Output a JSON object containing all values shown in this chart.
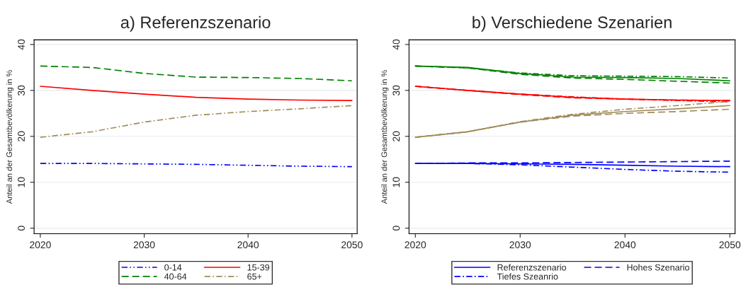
{
  "chart_data": [
    {
      "type": "line",
      "title": "a) Referenzszenario",
      "ylabel": "Anteil an der Gesamtbevölkerung in %",
      "x": [
        2020,
        2025,
        2030,
        2035,
        2040,
        2045,
        2050
      ],
      "xlim": [
        2019.4,
        2050.5
      ],
      "ylim": [
        -1.2,
        41
      ],
      "xticks": [
        2020,
        2030,
        2040,
        2050
      ],
      "yticks": [
        0,
        10,
        20,
        30,
        40
      ],
      "grid": "y",
      "legend": "bottom",
      "series": [
        {
          "name": "0-14",
          "color": "#0000ff",
          "line_style": "dashdotdot",
          "values": [
            14.1,
            14.1,
            14.0,
            13.9,
            13.7,
            13.5,
            13.4
          ]
        },
        {
          "name": "15-39",
          "color": "#ff0000",
          "line_style": "solid",
          "values": [
            30.9,
            30.0,
            29.2,
            28.5,
            28.1,
            27.9,
            27.8
          ]
        },
        {
          "name": "40-64",
          "color": "#008000",
          "line_style": "dashed",
          "values": [
            35.3,
            35.0,
            33.7,
            32.9,
            32.8,
            32.6,
            32.1
          ]
        },
        {
          "name": "65+",
          "color": "#a08c5a",
          "line_style": "dashdot",
          "values": [
            19.8,
            21.0,
            23.1,
            24.6,
            25.4,
            26.0,
            26.7
          ]
        }
      ]
    },
    {
      "type": "line",
      "title": "b) Verschiedene Szenarien",
      "ylabel": "Anteil an der Gesamtbevölkerung in %",
      "x": [
        2020,
        2025,
        2030,
        2035,
        2040,
        2045,
        2050
      ],
      "xlim": [
        2019.4,
        2050.5
      ],
      "ylim": [
        -1.2,
        41
      ],
      "xticks": [
        2020,
        2030,
        2040,
        2050
      ],
      "yticks": [
        0,
        10,
        20,
        30,
        40
      ],
      "grid": "y",
      "legend": "bottom",
      "series": [
        {
          "name": "Referenzszenario",
          "color": "#0000ff",
          "line_style": "solid",
          "values": [
            14.1,
            14.1,
            14.0,
            13.9,
            13.7,
            13.5,
            13.4
          ]
        },
        {
          "color": "#ff0000",
          "line_style": "solid",
          "values": [
            30.9,
            30.0,
            29.2,
            28.5,
            28.1,
            27.9,
            27.8
          ]
        },
        {
          "color": "#008000",
          "line_style": "solid",
          "values": [
            35.3,
            35.0,
            33.7,
            32.9,
            32.8,
            32.6,
            32.1
          ]
        },
        {
          "color": "#a08c5a",
          "line_style": "solid",
          "values": [
            19.8,
            21.0,
            23.1,
            24.6,
            25.4,
            26.0,
            26.7
          ]
        },
        {
          "name": "Hohes Szenario",
          "color": "#0000ff",
          "line_style": "dashed",
          "values": [
            14.1,
            14.2,
            14.2,
            14.3,
            14.4,
            14.5,
            14.6
          ]
        },
        {
          "color": "#ff0000",
          "line_style": "dashed",
          "values": [
            30.9,
            30.0,
            29.1,
            28.4,
            28.1,
            27.9,
            27.8
          ]
        },
        {
          "color": "#008000",
          "line_style": "dashed",
          "values": [
            35.3,
            34.9,
            33.5,
            32.7,
            32.4,
            32.0,
            31.6
          ]
        },
        {
          "color": "#a08c5a",
          "line_style": "dashed",
          "values": [
            19.8,
            21.0,
            23.1,
            24.4,
            25.0,
            25.4,
            25.9
          ]
        },
        {
          "name": "Tiefes Szeanrio",
          "color": "#0000ff",
          "line_style": "dashdot",
          "values": [
            14.1,
            14.1,
            13.8,
            13.3,
            12.8,
            12.4,
            12.2
          ]
        },
        {
          "color": "#ff0000",
          "line_style": "dashdot",
          "values": [
            30.9,
            30.0,
            29.2,
            28.6,
            28.1,
            27.8,
            27.5
          ]
        },
        {
          "color": "#008000",
          "line_style": "dashdot",
          "values": [
            35.3,
            34.9,
            33.8,
            33.2,
            33.1,
            33.0,
            32.7
          ]
        },
        {
          "color": "#a08c5a",
          "line_style": "dashdot",
          "values": [
            19.8,
            21.0,
            23.2,
            24.8,
            25.9,
            26.7,
            27.6
          ]
        }
      ]
    }
  ]
}
